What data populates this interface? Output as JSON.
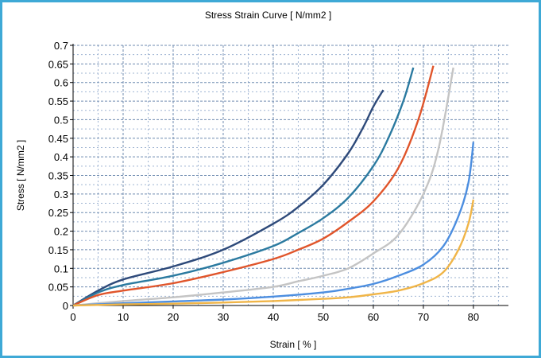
{
  "chart_data": {
    "type": "line",
    "title": "Stress Strain Curve [ N/mm2 ]",
    "xlabel": "Strain [ % ]",
    "ylabel": "Stress [ N/mm2 ]",
    "xlim": [
      0,
      87
    ],
    "ylim": [
      0,
      0.7
    ],
    "xticks": [
      "0",
      "10",
      "20",
      "30",
      "40",
      "50",
      "60",
      "70",
      "80"
    ],
    "yticks": [
      "0",
      "0.05",
      "0.1",
      "0.15",
      "0.2",
      "0.25",
      "0.3",
      "0.35",
      "0.4",
      "0.45",
      "0.5",
      "0.55",
      "0.6",
      "0.65",
      "0.7"
    ],
    "grid": true,
    "series": [
      {
        "color": "#2e4a7a",
        "points": [
          [
            0,
            0
          ],
          [
            5,
            0.04
          ],
          [
            10,
            0.07
          ],
          [
            20,
            0.105
          ],
          [
            30,
            0.15
          ],
          [
            40,
            0.22
          ],
          [
            45,
            0.265
          ],
          [
            50,
            0.325
          ],
          [
            55,
            0.41
          ],
          [
            58,
            0.48
          ],
          [
            60,
            0.535
          ],
          [
            62,
            0.58
          ]
        ]
      },
      {
        "color": "#2b7aa0",
        "points": [
          [
            0,
            0
          ],
          [
            5,
            0.035
          ],
          [
            10,
            0.055
          ],
          [
            20,
            0.08
          ],
          [
            30,
            0.115
          ],
          [
            40,
            0.16
          ],
          [
            45,
            0.195
          ],
          [
            50,
            0.235
          ],
          [
            55,
            0.29
          ],
          [
            60,
            0.375
          ],
          [
            63,
            0.45
          ],
          [
            66,
            0.55
          ],
          [
            68,
            0.64
          ]
        ]
      },
      {
        "color": "#e0552b",
        "points": [
          [
            0,
            0
          ],
          [
            5,
            0.028
          ],
          [
            10,
            0.04
          ],
          [
            20,
            0.06
          ],
          [
            30,
            0.09
          ],
          [
            40,
            0.125
          ],
          [
            45,
            0.15
          ],
          [
            50,
            0.18
          ],
          [
            55,
            0.225
          ],
          [
            60,
            0.28
          ],
          [
            65,
            0.37
          ],
          [
            69,
            0.5
          ],
          [
            72,
            0.645
          ]
        ]
      },
      {
        "color": "#c4c4c4",
        "points": [
          [
            0,
            0
          ],
          [
            10,
            0.012
          ],
          [
            20,
            0.022
          ],
          [
            30,
            0.035
          ],
          [
            40,
            0.05
          ],
          [
            45,
            0.065
          ],
          [
            50,
            0.08
          ],
          [
            55,
            0.1
          ],
          [
            60,
            0.14
          ],
          [
            65,
            0.19
          ],
          [
            70,
            0.3
          ],
          [
            73,
            0.42
          ],
          [
            76,
            0.64
          ]
        ]
      },
      {
        "color": "#4c8ee0",
        "points": [
          [
            0,
            0
          ],
          [
            10,
            0.006
          ],
          [
            20,
            0.011
          ],
          [
            30,
            0.016
          ],
          [
            40,
            0.024
          ],
          [
            50,
            0.035
          ],
          [
            55,
            0.045
          ],
          [
            60,
            0.058
          ],
          [
            65,
            0.08
          ],
          [
            70,
            0.11
          ],
          [
            74,
            0.16
          ],
          [
            77,
            0.24
          ],
          [
            79,
            0.33
          ],
          [
            80,
            0.44
          ]
        ]
      },
      {
        "color": "#f0b548",
        "points": [
          [
            0,
            0
          ],
          [
            10,
            0.003
          ],
          [
            20,
            0.005
          ],
          [
            30,
            0.008
          ],
          [
            40,
            0.012
          ],
          [
            50,
            0.018
          ],
          [
            55,
            0.022
          ],
          [
            60,
            0.03
          ],
          [
            65,
            0.04
          ],
          [
            70,
            0.06
          ],
          [
            74,
            0.09
          ],
          [
            77,
            0.15
          ],
          [
            79,
            0.22
          ],
          [
            80,
            0.285
          ]
        ]
      }
    ]
  }
}
